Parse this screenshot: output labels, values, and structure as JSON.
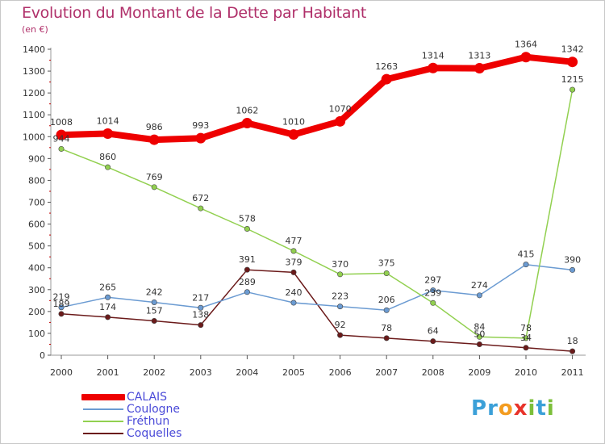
{
  "title": "Evolution du Montant de la Dette par Habitant",
  "subtitle": "(en €)",
  "colors": {
    "CALAIS": "#ee0000",
    "Coulogne": "#6b9bd2",
    "Fréthun": "#92d050",
    "Coquelles": "#6b1a1a",
    "title": "#b0306a",
    "legend_text": "#4a4ad8"
  },
  "logo": {
    "text": "Proxiti",
    "letters": [
      {
        "ch": "P",
        "color": "#3ba0d8"
      },
      {
        "ch": "r",
        "color": "#3ba0d8"
      },
      {
        "ch": "o",
        "color": "#f39c20"
      },
      {
        "ch": "x",
        "color": "#e8332a"
      },
      {
        "ch": "i",
        "color": "#7cbf3a"
      },
      {
        "ch": "t",
        "color": "#3ba0d8"
      },
      {
        "ch": "i",
        "color": "#7cbf3a"
      }
    ]
  },
  "chart_data": {
    "type": "line",
    "title": "Evolution du Montant de la Dette par Habitant",
    "subtitle": "(en €)",
    "x": [
      "2000",
      "2001",
      "2002",
      "2003",
      "2004",
      "2005",
      "2006",
      "2007",
      "2008",
      "2009",
      "2010",
      "2011"
    ],
    "ylim": [
      0,
      1400
    ],
    "yticks": [
      0,
      100,
      200,
      300,
      400,
      500,
      600,
      700,
      800,
      900,
      1000,
      1100,
      1200,
      1300,
      1400
    ],
    "grid": false,
    "legend": "bottom-left",
    "series": [
      {
        "name": "CALAIS",
        "values": [
          1008,
          1014,
          986,
          993,
          1062,
          1010,
          1070,
          1263,
          1314,
          1313,
          1364,
          1342
        ]
      },
      {
        "name": "Coulogne",
        "values": [
          219,
          265,
          242,
          217,
          289,
          240,
          223,
          206,
          297,
          274,
          415,
          390
        ]
      },
      {
        "name": "Fréthun",
        "values": [
          944,
          860,
          769,
          672,
          578,
          477,
          370,
          375,
          239,
          84,
          78,
          1215
        ]
      },
      {
        "name": "Coquelles",
        "values": [
          189,
          174,
          157,
          138,
          391,
          379,
          92,
          78,
          64,
          50,
          34,
          18
        ]
      }
    ]
  }
}
